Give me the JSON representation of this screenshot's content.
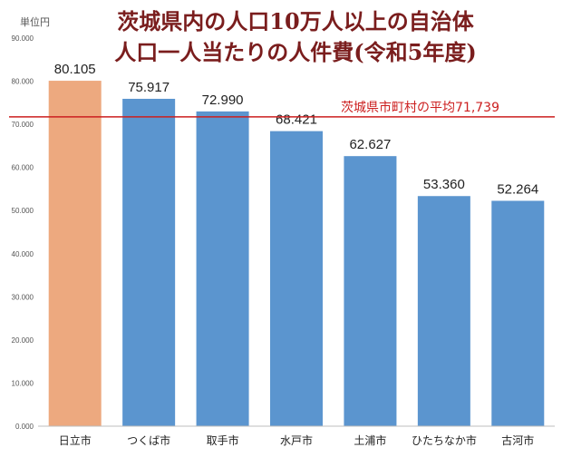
{
  "colors": {
    "title": "#7a1d1d",
    "bar_default": "#5b95cf",
    "bar_highlight": "#eda97f",
    "average_line": "#cc1f1f",
    "average_text": "#cc1f1f",
    "axis_text": "#555555",
    "category_text": "#222222",
    "baseline": "#bdbdbd"
  },
  "chart_data": {
    "type": "bar",
    "title": "茨城県内の人口10万人以上の自治体",
    "subtitle": "人口一人当たりの人件費(令和5年度)",
    "unit": "単位円",
    "categories": [
      "日立市",
      "つくば市",
      "取手市",
      "水戸市",
      "土浦市",
      "ひたちなか市",
      "古河市"
    ],
    "values": [
      80105,
      75917,
      72990,
      68421,
      62627,
      53360,
      52264
    ],
    "value_labels": [
      "80.105",
      "75.917",
      "72.990",
      "68.421",
      "62.627",
      "53.360",
      "52.264"
    ],
    "highlight_index": 0,
    "ylim": [
      0,
      90000
    ],
    "yticks": [
      0,
      10000,
      20000,
      30000,
      40000,
      50000,
      60000,
      70000,
      80000,
      90000
    ],
    "ytick_labels": [
      "0.000",
      "10.000",
      "20.000",
      "30.000",
      "40.000",
      "50.000",
      "60.000",
      "70.000",
      "80.000",
      "90.000"
    ],
    "average": {
      "value": 71739,
      "label": "茨城県市町村の平均",
      "value_text": "71,739"
    },
    "grid": false,
    "legend": "none"
  }
}
